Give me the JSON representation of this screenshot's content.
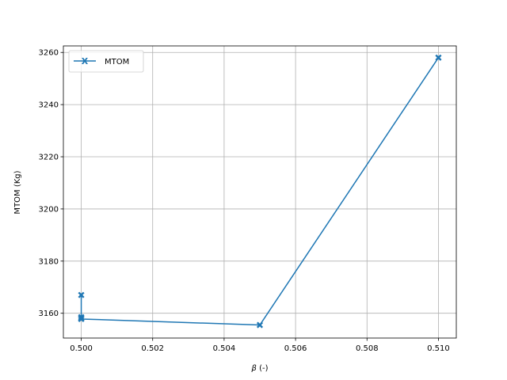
{
  "chart_data": {
    "type": "line",
    "title": "",
    "xlabel_symbol": "β",
    "xlabel_suffix": " (-)",
    "ylabel": "MTOM (Kg)",
    "xlim": [
      0.4995,
      0.5105
    ],
    "ylim": [
      3150.5,
      3262.5
    ],
    "xticks": [
      0.5,
      0.502,
      0.504,
      0.506,
      0.508,
      0.51
    ],
    "xtick_labels": [
      "0.500",
      "0.502",
      "0.504",
      "0.506",
      "0.508",
      "0.510"
    ],
    "yticks": [
      3160,
      3180,
      3200,
      3220,
      3240,
      3260
    ],
    "ytick_labels": [
      "3160",
      "3180",
      "3200",
      "3220",
      "3240",
      "3260"
    ],
    "grid": true,
    "legend_position": "top-left",
    "series": [
      {
        "name": "MTOM",
        "color": "#1f77b4",
        "marker": "X",
        "points": [
          {
            "x": 0.5,
            "y": 3167.0
          },
          {
            "x": 0.5,
            "y": 3158.5
          },
          {
            "x": 0.5,
            "y": 3158.0
          },
          {
            "x": 0.5,
            "y": 3157.8
          },
          {
            "x": 0.505,
            "y": 3155.5
          },
          {
            "x": 0.51,
            "y": 3258.0
          }
        ]
      }
    ]
  }
}
